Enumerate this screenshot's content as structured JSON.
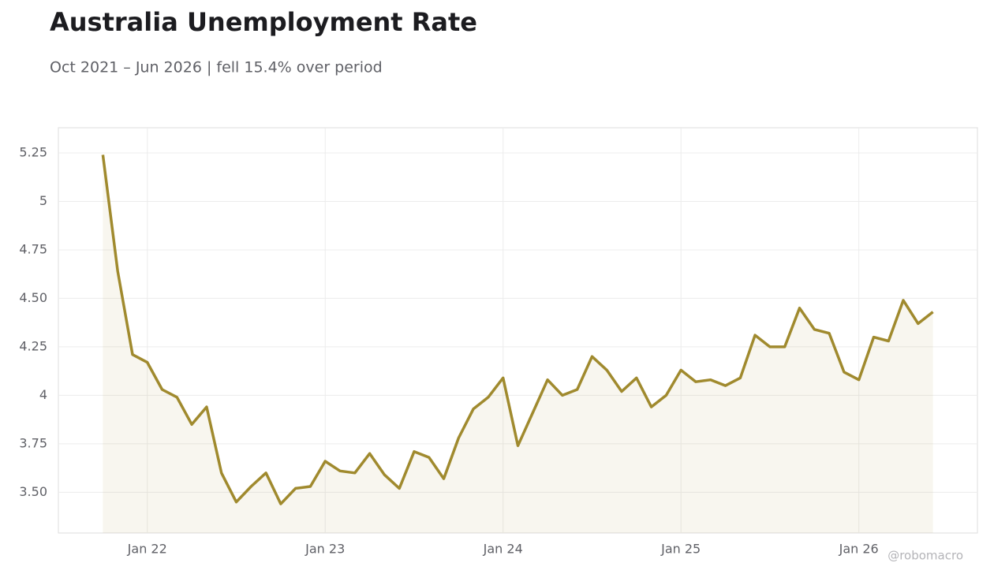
{
  "chart_data": {
    "type": "line",
    "title": "Australia Unemployment Rate",
    "subtitle": "Oct 2021 – Jun 2026 | fell 15.4% over period",
    "watermark": "@robomacro",
    "x": [
      "2021-10",
      "2021-11",
      "2021-12",
      "2022-01",
      "2022-02",
      "2022-03",
      "2022-04",
      "2022-05",
      "2022-06",
      "2022-07",
      "2022-08",
      "2022-09",
      "2022-10",
      "2022-11",
      "2022-12",
      "2023-01",
      "2023-02",
      "2023-03",
      "2023-04",
      "2023-05",
      "2023-06",
      "2023-07",
      "2023-08",
      "2023-09",
      "2023-10",
      "2023-11",
      "2023-12",
      "2024-01",
      "2024-02",
      "2024-03",
      "2024-04",
      "2024-05",
      "2024-06",
      "2024-07",
      "2024-08",
      "2024-09",
      "2024-10",
      "2024-11",
      "2024-12",
      "2025-01",
      "2025-02",
      "2025-03",
      "2025-04",
      "2025-05",
      "2025-06",
      "2025-07",
      "2025-08",
      "2025-09",
      "2025-10",
      "2025-11",
      "2025-12",
      "2026-01",
      "2026-02",
      "2026-03",
      "2026-04",
      "2026-05",
      "2026-06"
    ],
    "values": [
      5.24,
      4.64,
      4.21,
      4.17,
      4.03,
      3.99,
      3.85,
      3.94,
      3.6,
      3.45,
      3.53,
      3.6,
      3.44,
      3.52,
      3.53,
      3.66,
      3.61,
      3.6,
      3.7,
      3.59,
      3.52,
      3.71,
      3.68,
      3.57,
      3.78,
      3.93,
      3.99,
      4.09,
      3.74,
      3.91,
      4.08,
      4.0,
      4.03,
      4.2,
      4.13,
      4.02,
      4.09,
      3.94,
      4.0,
      4.13,
      4.07,
      4.08,
      4.05,
      4.09,
      4.31,
      4.25,
      4.25,
      4.45,
      4.34,
      4.32,
      4.12,
      4.08,
      4.3,
      4.28,
      4.49,
      4.37,
      4.43
    ],
    "color": "#a08a2e",
    "xlim": [
      "2021-07",
      "2026-09"
    ],
    "xticks": [
      {
        "value": "2022-01",
        "label": "Jan 22"
      },
      {
        "value": "2023-01",
        "label": "Jan 23"
      },
      {
        "value": "2024-01",
        "label": "Jan 24"
      },
      {
        "value": "2025-01",
        "label": "Jan 25"
      },
      {
        "value": "2026-01",
        "label": "Jan 26"
      }
    ],
    "ylim": [
      3.29,
      5.38
    ],
    "yticks": [
      {
        "value": 3.5,
        "label": "3.50"
      },
      3.75,
      4,
      4.25,
      {
        "value": 4.5,
        "label": "4.50"
      },
      4.75,
      5,
      5.25
    ],
    "grid": true
  }
}
